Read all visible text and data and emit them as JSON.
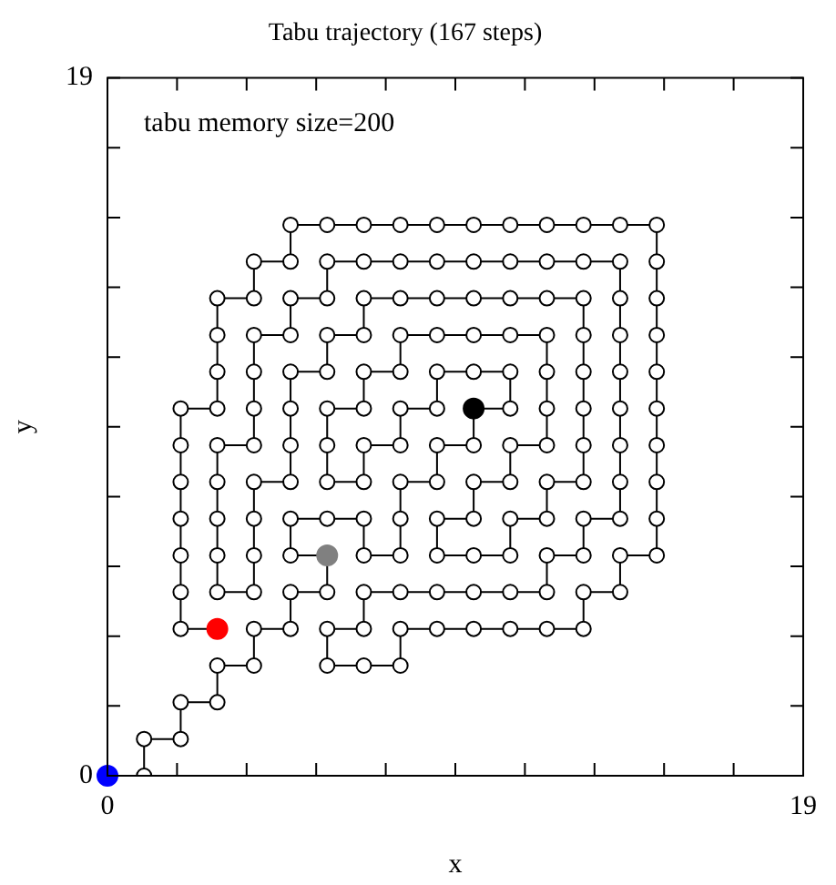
{
  "chart_data": {
    "type": "line",
    "title": "Tabu trajectory (167 steps)",
    "xlabel": "x",
    "ylabel": "y",
    "annotations": [
      "tabu memory size=200"
    ],
    "xlim": [
      0,
      19
    ],
    "ylim": [
      0,
      19
    ],
    "xticks": [
      0,
      {
        "value": 1.9,
        "label": null
      },
      {
        "value": 3.8,
        "label": null
      },
      {
        "value": 5.7,
        "label": null
      },
      {
        "value": 7.6,
        "label": null
      },
      {
        "value": 9.5,
        "label": null
      },
      {
        "value": 11.4,
        "label": null
      },
      {
        "value": 13.3,
        "label": null
      },
      {
        "value": 15.2,
        "label": null
      },
      {
        "value": 17.1,
        "label": null
      },
      19
    ],
    "yticks": [
      0,
      {
        "value": 1.9,
        "label": null
      },
      {
        "value": 3.8,
        "label": null
      },
      {
        "value": 5.7,
        "label": null
      },
      {
        "value": 7.6,
        "label": null
      },
      {
        "value": 9.5,
        "label": null
      },
      {
        "value": 11.4,
        "label": null
      },
      {
        "value": 13.3,
        "label": null
      },
      {
        "value": 15.2,
        "label": null
      },
      {
        "value": 17.1,
        "label": null
      },
      19
    ],
    "grid": false,
    "legend": false,
    "marker": "circle",
    "series": [
      {
        "color": "#000000",
        "x": [
          0,
          1,
          1,
          2,
          2,
          3,
          3,
          4,
          4,
          5,
          5,
          6,
          6,
          5,
          5,
          6,
          7,
          7,
          8,
          8,
          8,
          9,
          9,
          10,
          10,
          11,
          11,
          10,
          9,
          9,
          8,
          8,
          7,
          7,
          6,
          6,
          6,
          7,
          7,
          8,
          8,
          9,
          10,
          11,
          12,
          12,
          12,
          12,
          11,
          11,
          10,
          10,
          9,
          9,
          10,
          11,
          11,
          12,
          12,
          13,
          13,
          13,
          13,
          13,
          13,
          12,
          11,
          10,
          9,
          8,
          7,
          7,
          6,
          6,
          5,
          5,
          5,
          5,
          4,
          4,
          4,
          4,
          3,
          3,
          3,
          3,
          3,
          4,
          4,
          4,
          4,
          5,
          5,
          6,
          6,
          7,
          8,
          9,
          10,
          11,
          12,
          13,
          14,
          14,
          14,
          14,
          14,
          14,
          14,
          14,
          13,
          13,
          12,
          12,
          11,
          10,
          9,
          8,
          7,
          7,
          6,
          6,
          7,
          8,
          8,
          9,
          10,
          11,
          12,
          13,
          13,
          14,
          14,
          15,
          15,
          15,
          15,
          15,
          15,
          15,
          15,
          15,
          15,
          14,
          13,
          12,
          11,
          10,
          9,
          8,
          7,
          6,
          5,
          5,
          4,
          4,
          3,
          3,
          3,
          3,
          2,
          2,
          2,
          2,
          2,
          2,
          2,
          3
        ],
        "values": [
          0,
          0,
          1,
          1,
          2,
          2,
          3,
          3,
          4,
          4,
          5,
          5,
          6,
          6,
          7,
          7,
          7,
          6,
          6,
          7,
          8,
          8,
          9,
          9,
          10,
          10,
          11,
          11,
          11,
          10,
          10,
          9,
          9,
          8,
          8,
          9,
          10,
          10,
          11,
          11,
          12,
          12,
          12,
          12,
          12,
          11,
          10,
          9,
          9,
          8,
          8,
          7,
          7,
          6,
          6,
          6,
          7,
          7,
          8,
          8,
          9,
          10,
          11,
          12,
          13,
          13,
          13,
          13,
          13,
          13,
          13,
          12,
          12,
          11,
          11,
          10,
          9,
          8,
          8,
          7,
          6,
          5,
          5,
          6,
          7,
          8,
          9,
          9,
          10,
          11,
          12,
          12,
          13,
          13,
          14,
          14,
          14,
          14,
          14,
          14,
          14,
          14,
          14,
          13,
          12,
          11,
          10,
          9,
          8,
          7,
          7,
          6,
          6,
          5,
          5,
          5,
          5,
          5,
          5,
          4,
          4,
          3,
          3,
          3,
          4,
          4,
          4,
          4,
          4,
          4,
          5,
          5,
          6,
          6,
          7,
          8,
          9,
          10,
          11,
          12,
          13,
          14,
          15,
          15,
          15,
          15,
          15,
          15,
          15,
          15,
          15,
          15,
          15,
          14,
          14,
          13,
          13,
          12,
          11,
          10,
          10,
          9,
          8,
          7,
          6,
          5,
          4,
          4
        ]
      },
      {
        "type": "scatter",
        "color": "#0000ff",
        "x": [
          0
        ],
        "values": [
          0
        ]
      },
      {
        "type": "scatter",
        "color": "#808080",
        "x": [
          6
        ],
        "values": [
          6
        ]
      },
      {
        "type": "scatter",
        "color": "#000000",
        "x": [
          10
        ],
        "values": [
          10
        ]
      },
      {
        "type": "scatter",
        "color": "#ff0000",
        "x": [
          3
        ],
        "values": [
          4
        ]
      }
    ]
  }
}
